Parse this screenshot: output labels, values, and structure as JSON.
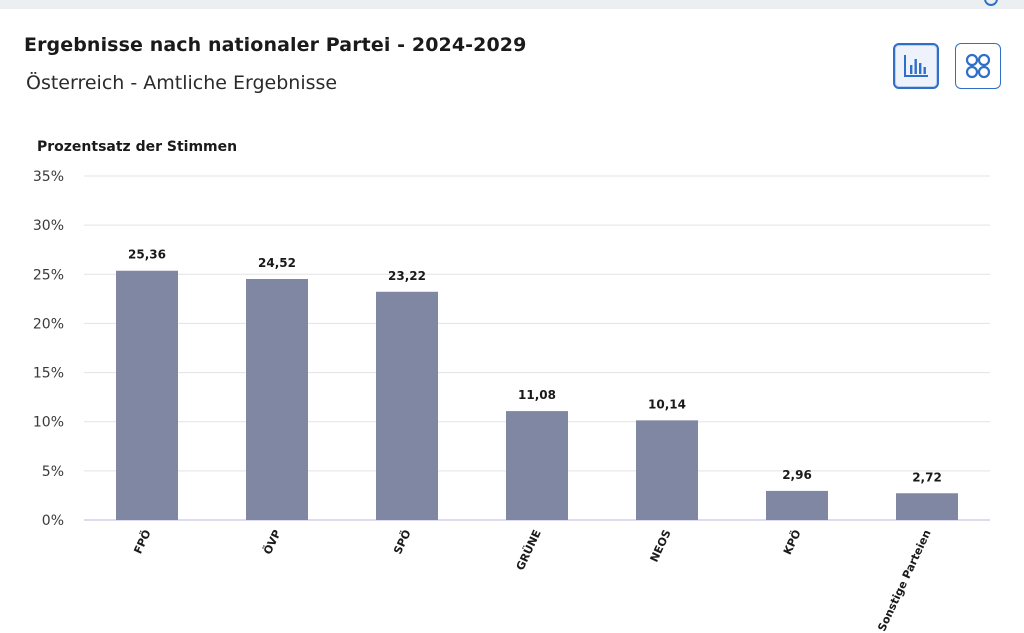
{
  "header": {
    "title": "Ergebnisse nach nationaler Partei - 2024-2029",
    "subtitle": "Österreich - Amtliche Ergebnisse"
  },
  "view_toggle": {
    "active": "chart",
    "icons": [
      "bar-chart-icon",
      "grid-icon"
    ],
    "accent_color": "#2f6ec9"
  },
  "chart_data": {
    "type": "bar",
    "ylabel": "Prozentsatz der Stimmen",
    "categories": [
      "FPÖ",
      "ÖVP",
      "SPÖ",
      "GRÜNE",
      "NEOS",
      "KPÖ",
      "Sonstige Parteien"
    ],
    "values": [
      25.36,
      24.52,
      23.22,
      11.08,
      10.14,
      2.96,
      2.72
    ],
    "value_labels": [
      "25,36",
      "24,52",
      "23,22",
      "11,08",
      "10,14",
      "2,96",
      "2,72"
    ],
    "ylim": [
      0,
      35
    ],
    "yticks": [
      0,
      5,
      10,
      15,
      20,
      25,
      30,
      35
    ],
    "ytick_labels": [
      "0%",
      "5%",
      "10%",
      "15%",
      "20%",
      "25%",
      "30%",
      "35%"
    ],
    "grid": true,
    "bar_color": "#7f87a3"
  }
}
